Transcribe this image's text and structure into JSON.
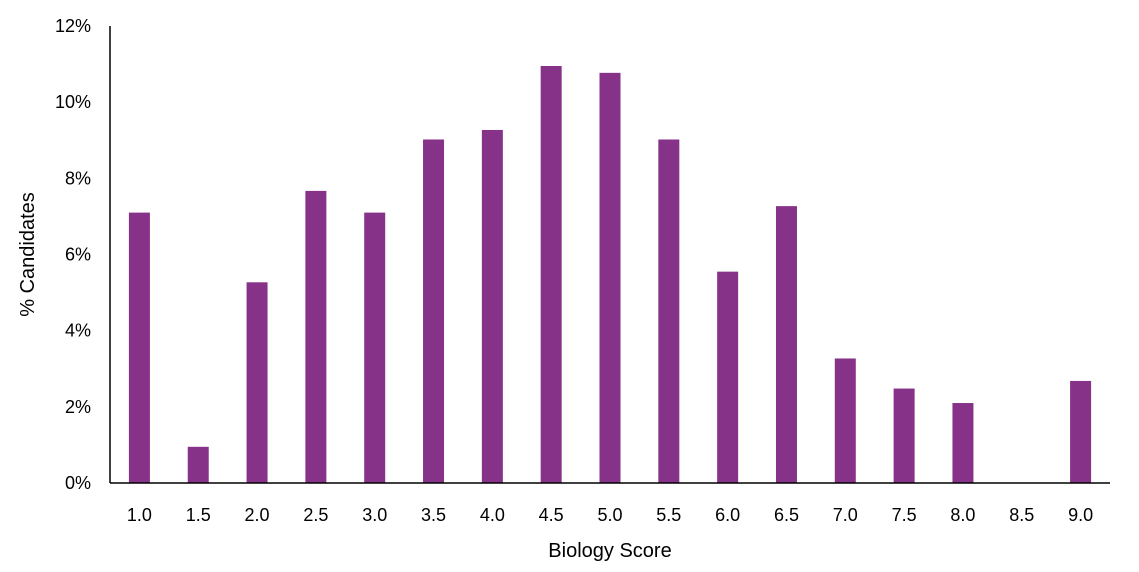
{
  "chart_data": {
    "type": "bar",
    "title": "",
    "xlabel": "Biology Score",
    "ylabel": "% Candidates",
    "categories": [
      "1.0",
      "1.5",
      "2.0",
      "2.5",
      "3.0",
      "3.5",
      "4.0",
      "4.5",
      "5.0",
      "5.5",
      "6.0",
      "6.5",
      "7.0",
      "7.5",
      "8.0",
      "8.5",
      "9.0"
    ],
    "values": [
      7.1,
      0.95,
      5.27,
      7.67,
      7.1,
      9.02,
      9.27,
      10.95,
      10.77,
      9.02,
      5.55,
      7.27,
      3.27,
      2.48,
      2.1,
      0,
      2.68
    ],
    "ylim": [
      0,
      12
    ],
    "yticks": [
      0,
      2,
      4,
      6,
      8,
      10,
      12
    ],
    "ytick_labels": [
      "0%",
      "2%",
      "4%",
      "6%",
      "8%",
      "10%",
      "12%"
    ],
    "bar_color": "#873289",
    "grid": false,
    "legend": "none"
  }
}
